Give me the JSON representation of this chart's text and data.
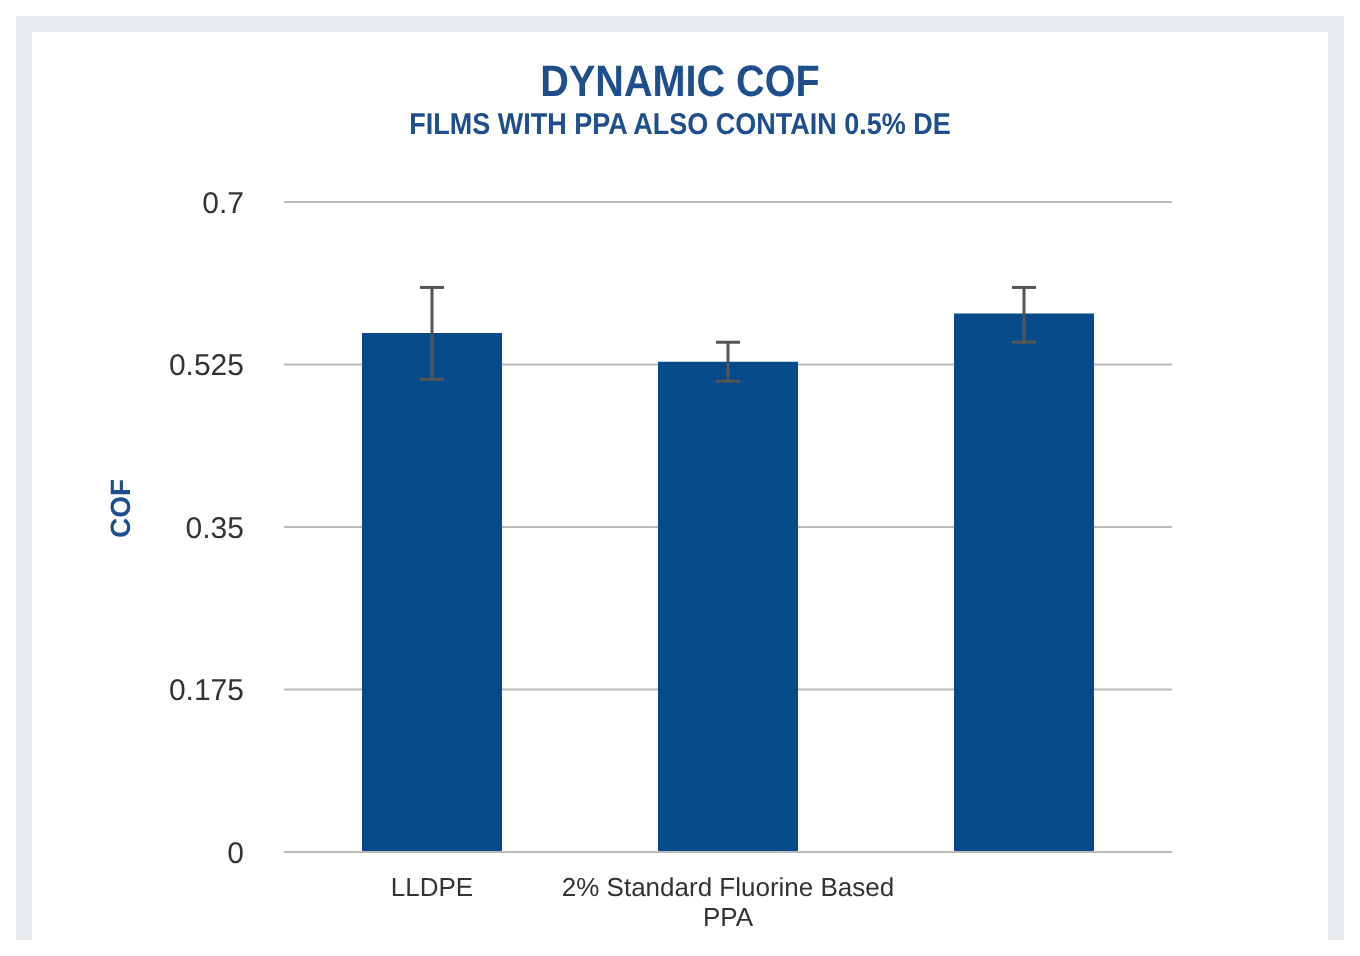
{
  "chart_data": {
    "type": "bar",
    "title": "DYNAMIC COF",
    "subtitle": "FILMS WITH PPA ALSO CONTAIN 0.5% DE",
    "ylabel": "COF",
    "categories": [
      "LLDPE",
      "2% Standard Fluorine Based PPA",
      null
    ],
    "values": [
      0.559,
      0.528,
      0.58
    ],
    "errors": [
      [
        0.509,
        0.608
      ],
      [
        0.507,
        0.549
      ],
      [
        0.549,
        0.608
      ]
    ],
    "color": "#064a8a",
    "ylim": [
      0,
      0.7
    ],
    "yticks": [
      0,
      0.175,
      0.35,
      0.525,
      0.7
    ],
    "grid": "y",
    "legend": false
  }
}
